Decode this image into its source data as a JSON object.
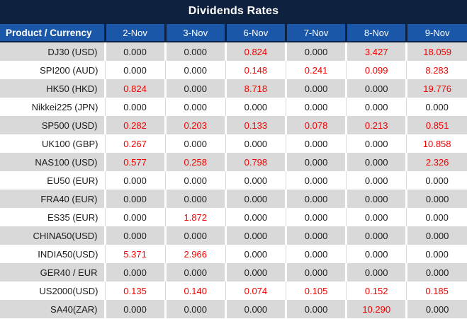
{
  "title": "Dividends Rates",
  "colors": {
    "title_bg": "#0e2240",
    "header_bg": "#1b57a8",
    "header_text": "#ffffff",
    "row_alt_bg": "#d9d9d9",
    "row_bg": "#ffffff",
    "text_dark": "#1c1c1c",
    "value_red": "#f20000"
  },
  "table": {
    "product_header": "Product / Currency",
    "date_headers": [
      "2-Nov",
      "3-Nov",
      "6-Nov",
      "7-Nov",
      "8-Nov",
      "9-Nov"
    ],
    "zero_value": "0.000",
    "rows": [
      {
        "product": "DJ30 (USD)",
        "values": [
          "0.000",
          "0.000",
          "0.824",
          "0.000",
          "3.427",
          "18.059"
        ]
      },
      {
        "product": "SPI200 (AUD)",
        "values": [
          "0.000",
          "0.000",
          "0.148",
          "0.241",
          "0.099",
          "8.283"
        ]
      },
      {
        "product": "HK50 (HKD)",
        "values": [
          "0.824",
          "0.000",
          "8.718",
          "0.000",
          "0.000",
          "19.776"
        ]
      },
      {
        "product": "Nikkei225 (JPN)",
        "values": [
          "0.000",
          "0.000",
          "0.000",
          "0.000",
          "0.000",
          "0.000"
        ]
      },
      {
        "product": "SP500 (USD)",
        "values": [
          "0.282",
          "0.203",
          "0.133",
          "0.078",
          "0.213",
          "0.851"
        ]
      },
      {
        "product": "UK100 (GBP)",
        "values": [
          "0.267",
          "0.000",
          "0.000",
          "0.000",
          "0.000",
          "10.858"
        ]
      },
      {
        "product": "NAS100 (USD)",
        "values": [
          "0.577",
          "0.258",
          "0.798",
          "0.000",
          "0.000",
          "2.326"
        ]
      },
      {
        "product": "EU50 (EUR)",
        "values": [
          "0.000",
          "0.000",
          "0.000",
          "0.000",
          "0.000",
          "0.000"
        ]
      },
      {
        "product": "FRA40 (EUR)",
        "values": [
          "0.000",
          "0.000",
          "0.000",
          "0.000",
          "0.000",
          "0.000"
        ]
      },
      {
        "product": "ES35 (EUR)",
        "values": [
          "0.000",
          "1.872",
          "0.000",
          "0.000",
          "0.000",
          "0.000"
        ]
      },
      {
        "product": "CHINA50(USD)",
        "values": [
          "0.000",
          "0.000",
          "0.000",
          "0.000",
          "0.000",
          "0.000"
        ]
      },
      {
        "product": "INDIA50(USD)",
        "values": [
          "5.371",
          "2.966",
          "0.000",
          "0.000",
          "0.000",
          "0.000"
        ]
      },
      {
        "product": "GER40 / EUR",
        "values": [
          "0.000",
          "0.000",
          "0.000",
          "0.000",
          "0.000",
          "0.000"
        ]
      },
      {
        "product": "US2000(USD)",
        "values": [
          "0.135",
          "0.140",
          "0.074",
          "0.105",
          "0.152",
          "0.185"
        ]
      },
      {
        "product": "SA40(ZAR)",
        "values": [
          "0.000",
          "0.000",
          "0.000",
          "0.000",
          "10.290",
          "0.000"
        ]
      }
    ]
  }
}
